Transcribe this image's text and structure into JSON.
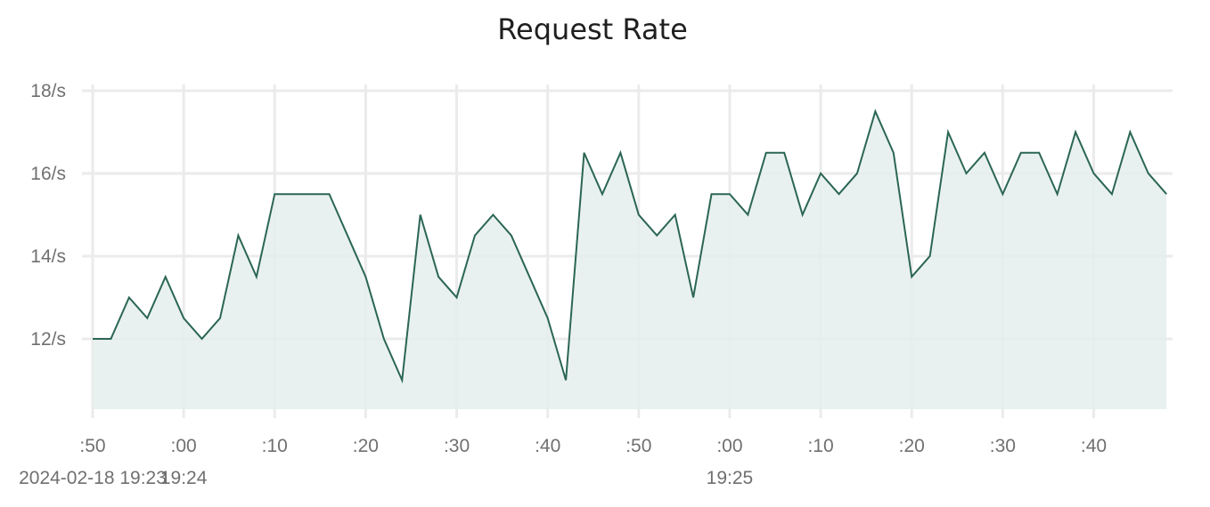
{
  "chart_data": {
    "type": "area",
    "title": "Request Rate",
    "colors": {
      "line": "#2b6654",
      "fill": "#e5efed",
      "grid": "#ebebeb",
      "text": "#707070"
    },
    "grid": true,
    "legend": "none",
    "xlim_seconds": [
      -120,
      58
    ],
    "ylim": [
      10.3,
      18.15
    ],
    "y_ticks": [
      {
        "value": 12,
        "label": "12/s"
      },
      {
        "value": 14,
        "label": "14/s"
      },
      {
        "value": 16,
        "label": "16/s"
      },
      {
        "value": 18,
        "label": "18/s"
      }
    ],
    "x_ticks": [
      {
        "value": -120,
        "label": ":50"
      },
      {
        "value": -105,
        "label": ":00"
      },
      {
        "value": -90,
        "label": ":10"
      },
      {
        "value": -75,
        "label": ":20"
      },
      {
        "value": -60,
        "label": ":30"
      },
      {
        "value": -45,
        "label": ":40"
      },
      {
        "value": -30,
        "label": ":50"
      },
      {
        "value": -15,
        "label": ":00"
      },
      {
        "value": 0,
        "label": ":10"
      },
      {
        "value": 15,
        "label": ":20"
      },
      {
        "value": 30,
        "label": ":30"
      },
      {
        "value": 45,
        "label": ":40"
      }
    ],
    "date_labels": [
      {
        "value": -120,
        "label": "2024-02-18 19:23"
      },
      {
        "value": -105,
        "label": "19:24"
      },
      {
        "value": -15,
        "label": "19:25"
      }
    ],
    "series": [
      {
        "x": [
          -120,
          -117,
          -114,
          -111,
          -108,
          -105,
          -102,
          -99,
          -96,
          -93,
          -90,
          -87,
          -84,
          -81,
          -78,
          -75,
          -72,
          -69,
          -66,
          -63,
          -60,
          -57,
          -54,
          -51,
          -48,
          -45,
          -42,
          -39,
          -36,
          -33,
          -30,
          -27,
          -24,
          -21,
          -18,
          -15,
          -12,
          -9,
          -6,
          -3,
          0,
          3,
          6,
          9,
          12,
          15,
          18,
          21,
          24,
          27,
          30,
          33,
          36,
          39,
          42,
          45,
          48,
          51,
          54,
          57
        ],
        "values": [
          12,
          12,
          13,
          12.5,
          13.5,
          12.5,
          12,
          12.5,
          14.5,
          13.5,
          15.5,
          15.5,
          15.5,
          15.5,
          14.5,
          13.5,
          12,
          11,
          15,
          13.5,
          13,
          14.5,
          15,
          14.5,
          13.5,
          12.5,
          11,
          16.5,
          15.5,
          16.5,
          15,
          14.5,
          15,
          13,
          15.5,
          15.5,
          15,
          16.5,
          16.5,
          15,
          16,
          15.5,
          16,
          17.5,
          16.5,
          13.5,
          14,
          17,
          16,
          16.5,
          15.5,
          16.5,
          16.5,
          15.5,
          17,
          16,
          15.5,
          17,
          16,
          15.5
        ]
      }
    ]
  }
}
